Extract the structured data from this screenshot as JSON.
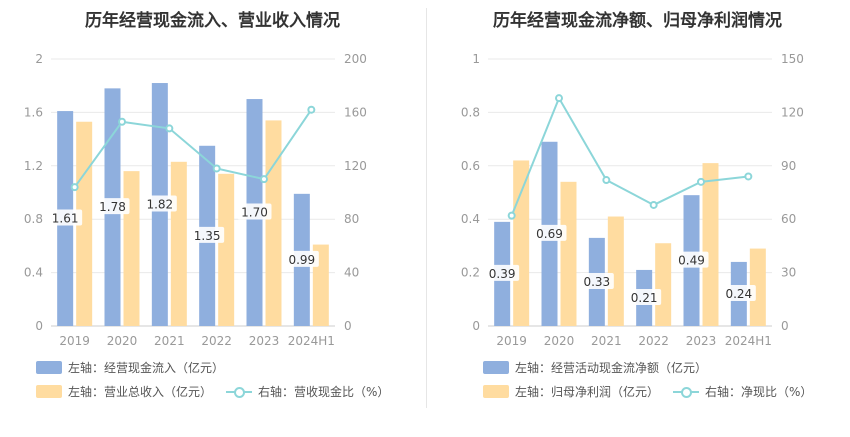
{
  "colors": {
    "bar_a": "#8fafde",
    "bar_b": "#ffdca0",
    "line": "#8cd6d9",
    "grid": "#e9e9e9",
    "tick": "#999999",
    "label_bg": "#ffffff"
  },
  "charts": [
    {
      "title": "历年经营现金流入、营业收入情况",
      "legend": {
        "bar_a": "左轴：经营现金流入（亿元）",
        "bar_b": "左轴：营业总收入（亿元）",
        "line": "右轴：营收现金比（%）"
      },
      "chart_data": {
        "type": "bar",
        "categories": [
          "2019",
          "2020",
          "2021",
          "2022",
          "2023",
          "2024H1"
        ],
        "left_axis": {
          "min": 0,
          "max": 2,
          "ticks": [
            "0",
            "0.4",
            "0.8",
            "1.2",
            "1.6",
            "2"
          ]
        },
        "right_axis": {
          "min": 0,
          "max": 200,
          "ticks": [
            "0",
            "40",
            "80",
            "120",
            "160",
            "200"
          ]
        },
        "series": [
          {
            "name": "左轴：经营现金流入（亿元）",
            "axis": "left",
            "kind": "bar",
            "values": [
              1.61,
              1.78,
              1.82,
              1.35,
              1.7,
              0.99
            ],
            "labels": [
              "1.61",
              "1.78",
              "1.82",
              "1.35",
              "1.70",
              "0.99"
            ]
          },
          {
            "name": "左轴：营业总收入（亿元）",
            "axis": "left",
            "kind": "bar",
            "values": [
              1.53,
              1.16,
              1.23,
              1.14,
              1.54,
              0.61
            ]
          },
          {
            "name": "右轴：营收现金比（%）",
            "axis": "right",
            "kind": "line",
            "values": [
              104,
              153,
              148,
              118,
              110,
              162
            ]
          }
        ]
      }
    },
    {
      "title": "历年经营现金流净额、归母净利润情况",
      "legend": {
        "bar_a": "左轴：经营活动现金流净额（亿元）",
        "bar_b": "左轴：归母净利润（亿元）",
        "line": "右轴：净现比（%）"
      },
      "chart_data": {
        "type": "bar",
        "categories": [
          "2019",
          "2020",
          "2021",
          "2022",
          "2023",
          "2024H1"
        ],
        "left_axis": {
          "min": 0,
          "max": 1,
          "ticks": [
            "0",
            "0.2",
            "0.4",
            "0.6",
            "0.8",
            "1"
          ]
        },
        "right_axis": {
          "min": 0,
          "max": 150,
          "ticks": [
            "0",
            "30",
            "60",
            "90",
            "120",
            "150"
          ]
        },
        "series": [
          {
            "name": "左轴：经营活动现金流净额（亿元）",
            "axis": "left",
            "kind": "bar",
            "values": [
              0.39,
              0.69,
              0.33,
              0.21,
              0.49,
              0.24
            ],
            "labels": [
              "0.39",
              "0.69",
              "0.33",
              "0.21",
              "0.49",
              "0.24"
            ]
          },
          {
            "name": "左轴：归母净利润（亿元）",
            "axis": "left",
            "kind": "bar",
            "values": [
              0.62,
              0.54,
              0.41,
              0.31,
              0.61,
              0.29
            ]
          },
          {
            "name": "右轴：净现比（%）",
            "axis": "right",
            "kind": "line",
            "values": [
              62,
              128,
              82,
              68,
              81,
              84
            ]
          }
        ]
      }
    }
  ]
}
